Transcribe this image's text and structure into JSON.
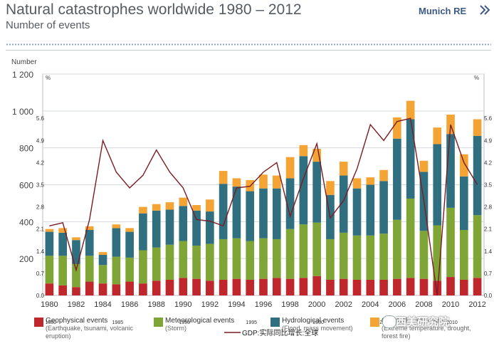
{
  "header": {
    "title": "Natural catastrophes worldwide 1980 – 2012",
    "subtitle": "Number of events",
    "brand": "Munich RE"
  },
  "chart_data": {
    "type": "bar",
    "stacked": true,
    "left_axis_label": "Number",
    "right_axis_label": "%",
    "left_axis_extra_label": "%",
    "ylim": [
      0,
      1200
    ],
    "yticks": [
      "200",
      "400",
      "600",
      "800",
      "1 000",
      "1 200"
    ],
    "right_ylim": [
      0.0,
      7.0
    ],
    "right_ticks_main": [
      "0.0",
      "0.7",
      "1.4",
      "2.1",
      "2.8",
      "3.5",
      "4.2",
      "4.9",
      "5.6"
    ],
    "left_ticks_secondary": [
      "0.0",
      "0.7",
      "1.4",
      "2.1",
      "2.8",
      "3.5",
      "4.2",
      "4.9",
      "5.6"
    ],
    "categories": [
      "1980",
      "1981",
      "1982",
      "1983",
      "1984",
      "1985",
      "1986",
      "1987",
      "1988",
      "1989",
      "1990",
      "1991",
      "1992",
      "1993",
      "1994",
      "1995",
      "1996",
      "1997",
      "1998",
      "1999",
      "2000",
      "2001",
      "2002",
      "2003",
      "2004",
      "2005",
      "2006",
      "2007",
      "2008",
      "2009",
      "2010",
      "2011",
      "2012"
    ],
    "xticks": [
      "1980",
      "1982",
      "1984",
      "1986",
      "1988",
      "1990",
      "1992",
      "1994",
      "1996",
      "1998",
      "2000",
      "2002",
      "2004",
      "2006",
      "2008",
      "2010",
      "2012"
    ],
    "overlay_xticks": [
      "1980",
      "1985",
      "1990",
      "1995",
      "2000",
      "2005",
      "2010"
    ],
    "series": [
      {
        "name": "Geophysical events",
        "color": "#c0272d",
        "values": [
          65,
          55,
          45,
          75,
          65,
          60,
          75,
          65,
          80,
          85,
          95,
          90,
          80,
          85,
          90,
          85,
          90,
          95,
          90,
          95,
          105,
          85,
          90,
          85,
          85,
          85,
          90,
          95,
          90,
          80,
          100,
          85,
          95
        ]
      },
      {
        "name": "Meteorological events",
        "color": "#7fa536",
        "values": [
          150,
          160,
          125,
          140,
          100,
          150,
          130,
          180,
          180,
          190,
          200,
          180,
          200,
          220,
          220,
          210,
          220,
          210,
          270,
          290,
          290,
          220,
          250,
          240,
          240,
          250,
          320,
          430,
          260,
          300,
          375,
          270,
          340
        ]
      },
      {
        "name": "Hydrological events",
        "color": "#2f6f7f",
        "values": [
          130,
          125,
          130,
          140,
          55,
          155,
          140,
          200,
          200,
          190,
          190,
          190,
          175,
          300,
          280,
          270,
          270,
          275,
          275,
          370,
          330,
          240,
          310,
          255,
          275,
          285,
          440,
          430,
          320,
          440,
          400,
          290,
          430
        ]
      },
      {
        "name": "Climatological events",
        "color": "#f4a434",
        "values": [
          15,
          25,
          15,
          20,
          15,
          20,
          20,
          35,
          35,
          40,
          45,
          30,
          65,
          70,
          45,
          60,
          75,
          70,
          115,
          60,
          70,
          75,
          75,
          55,
          40,
          60,
          115,
          100,
          60,
          90,
          105,
          120,
          90
        ]
      }
    ],
    "gdp_series": {
      "name": "GDP:实际同比增长:全球",
      "color": "#7a1c22",
      "values": [
        2.2,
        2.3,
        0.8,
        2.4,
        4.9,
        3.9,
        3.4,
        3.8,
        4.6,
        3.9,
        3.4,
        2.4,
        2.35,
        2.2,
        3.4,
        3.45,
        3.9,
        4.2,
        2.5,
        3.7,
        4.8,
        2.45,
        3.0,
        4.0,
        5.4,
        4.9,
        5.5,
        5.6,
        3.0,
        0.0,
        5.4,
        4.2,
        3.5
      ]
    },
    "legend": [
      {
        "label": "Geophysical events",
        "desc": "(Earthquake, tsunami, volcanic eruption)",
        "color": "#c0272d"
      },
      {
        "label": "Meteorological events",
        "desc": "(Storm)",
        "color": "#7fa536"
      },
      {
        "label": "Hydrological events",
        "desc": "(Flood, mass movement)",
        "color": "#2f6f7f"
      },
      {
        "label": "Climatological events",
        "desc": "(Extreme temperature, drought, forest fire)",
        "color": "#f4a434"
      }
    ]
  },
  "watermark": "西美研究院"
}
